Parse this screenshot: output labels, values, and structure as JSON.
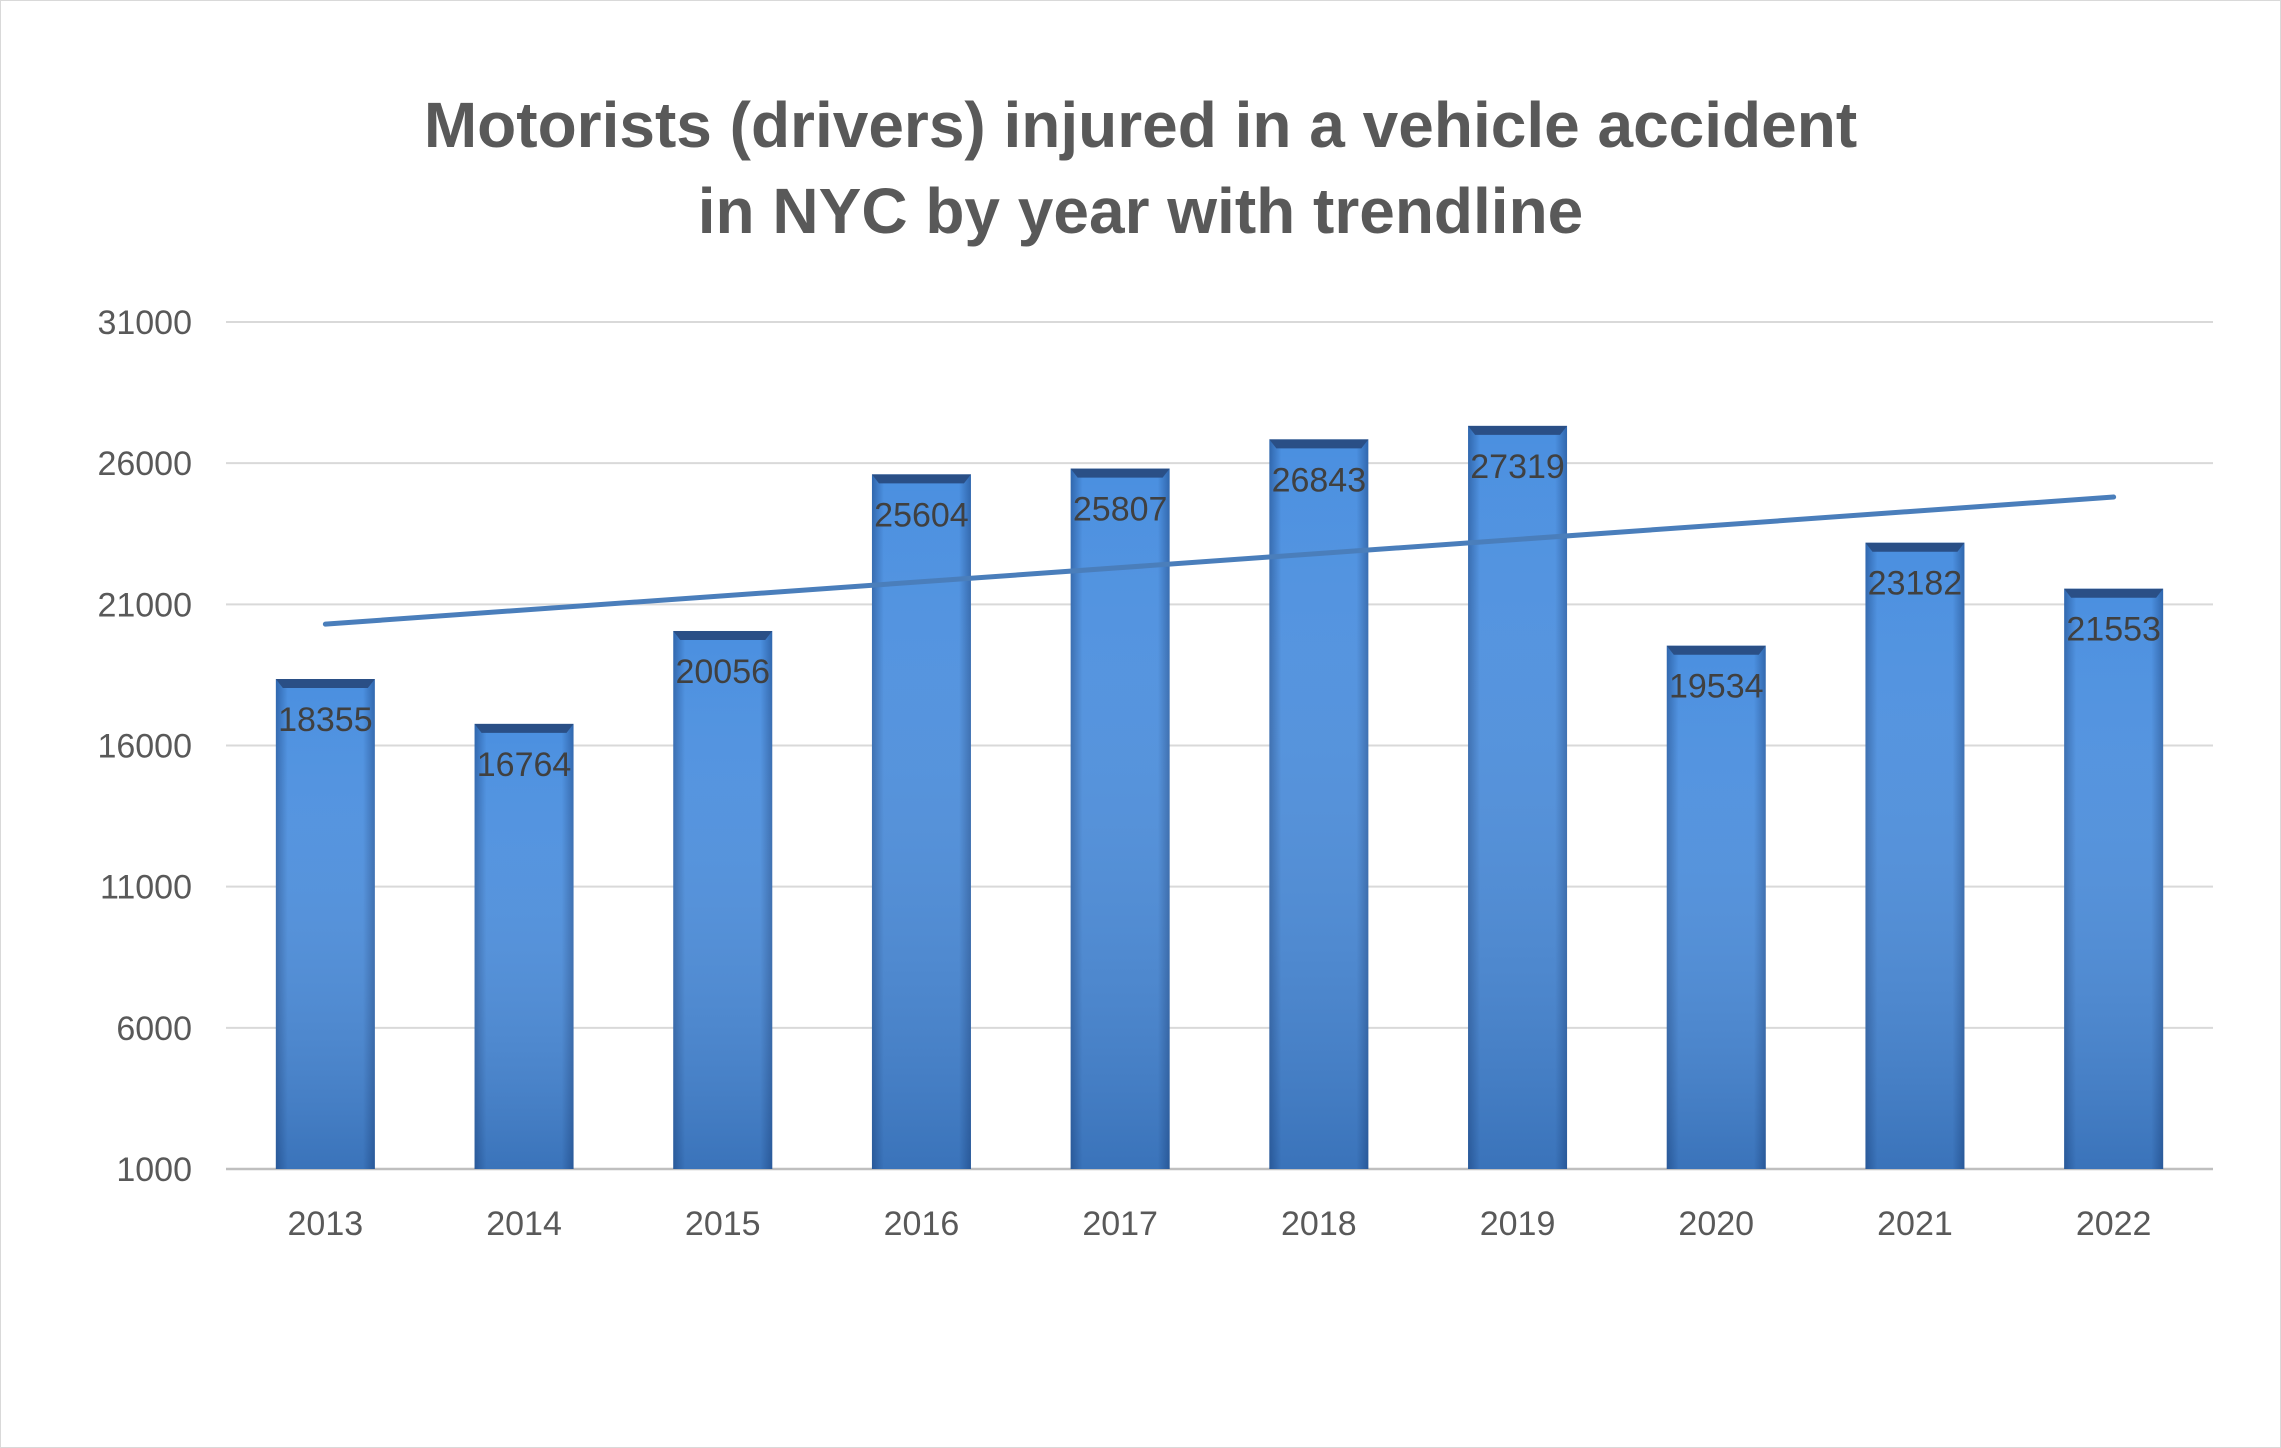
{
  "chart_data": {
    "type": "bar",
    "title_lines": [
      "Motorists (drivers) injured in a vehicle accident",
      "in NYC by year with trendline"
    ],
    "categories": [
      "2013",
      "2014",
      "2015",
      "2016",
      "2017",
      "2018",
      "2019",
      "2020",
      "2021",
      "2022"
    ],
    "values": [
      18355,
      16764,
      20056,
      25604,
      25807,
      26843,
      27319,
      19534,
      23182,
      21553
    ],
    "data_labels": [
      "18355",
      "16764",
      "20056",
      "25604",
      "25807",
      "26843",
      "27319",
      "19534",
      "23182",
      "21553"
    ],
    "yticks": [
      1000,
      6000,
      11000,
      16000,
      21000,
      26000,
      31000
    ],
    "ytick_labels": [
      "1000",
      "6000",
      "11000",
      "16000",
      "21000",
      "26000",
      "31000"
    ],
    "ylim": [
      1000,
      31000
    ],
    "grid": true,
    "legend": "none",
    "trendline": {
      "type": "linear",
      "start": 20300,
      "end": 24800
    },
    "xlabel": "",
    "ylabel": ""
  },
  "colors": {
    "bar_light": "#4a8fe0",
    "bar_mid": "#3a78c8",
    "bar_dark": "#2d5fa3",
    "bar_top": "#2a4f86",
    "trendline": "#4a7ebb",
    "grid": "#d9d9d9",
    "axis": "#bfbfbf",
    "title": "#595959",
    "tick_text": "#595959",
    "data_label": "#404040"
  }
}
